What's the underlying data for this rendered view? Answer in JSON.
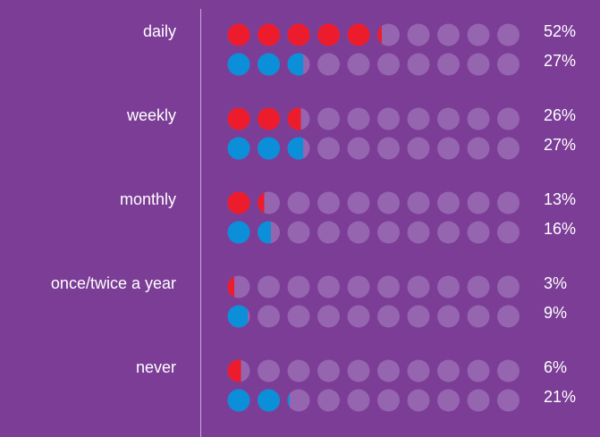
{
  "chart_data": {
    "type": "dot",
    "categories": [
      "daily",
      "weekly",
      "monthly",
      "once/twice a year",
      "never"
    ],
    "xlim": [
      0,
      100
    ],
    "empty_color": "#9565b0",
    "series": [
      {
        "color": "#ec1c2c",
        "values": [
          52,
          26,
          13,
          3,
          6
        ],
        "value_labels": [
          "52%",
          "26%",
          "13%",
          "3%",
          "6%"
        ]
      },
      {
        "color": "#0a8fd8",
        "values": [
          27,
          27,
          16,
          9,
          21
        ],
        "value_labels": [
          "27%",
          "27%",
          "16%",
          "9%",
          "21%"
        ]
      }
    ]
  }
}
